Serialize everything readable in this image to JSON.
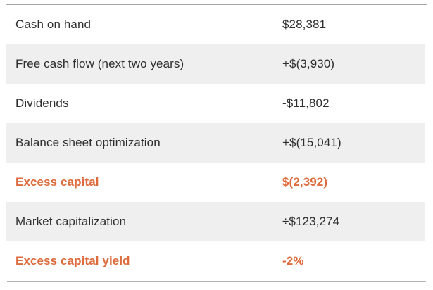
{
  "chart_data": {
    "type": "table",
    "rows": [
      [
        "Cash on hand",
        "$28,381"
      ],
      [
        "Free cash flow (next two years)",
        "+$(3,930)"
      ],
      [
        "Dividends",
        "-$11,802"
      ],
      [
        "Balance sheet optimization",
        "+$(15,041)"
      ],
      [
        "Excess capital",
        "$(2,392)"
      ],
      [
        "Market capitalization",
        "÷$123,274"
      ],
      [
        "Excess capital yield",
        "-2%"
      ]
    ],
    "legend_position": "none",
    "grid": false
  },
  "table": {
    "rows": [
      {
        "label": "Cash on hand",
        "value": "$28,381"
      },
      {
        "label": "Free cash flow (next two years)",
        "value": "+$(3,930)"
      },
      {
        "label": "Dividends",
        "value": "-$11,802"
      },
      {
        "label": "Balance sheet optimization",
        "value": "+$(15,041)"
      },
      {
        "label": "Excess capital",
        "value": "$(2,392)"
      },
      {
        "label": "Market capitalization",
        "value": "÷$123,274"
      },
      {
        "label": "Excess capital yield",
        "value": "-2%"
      }
    ]
  },
  "colors": {
    "accent_orange": "#dd6b3c",
    "row_alt_bg": "#efefef",
    "top_rule": "#a6a6a6",
    "bottom_rule": "#b3b3b3",
    "text": "#2e2e2e"
  }
}
